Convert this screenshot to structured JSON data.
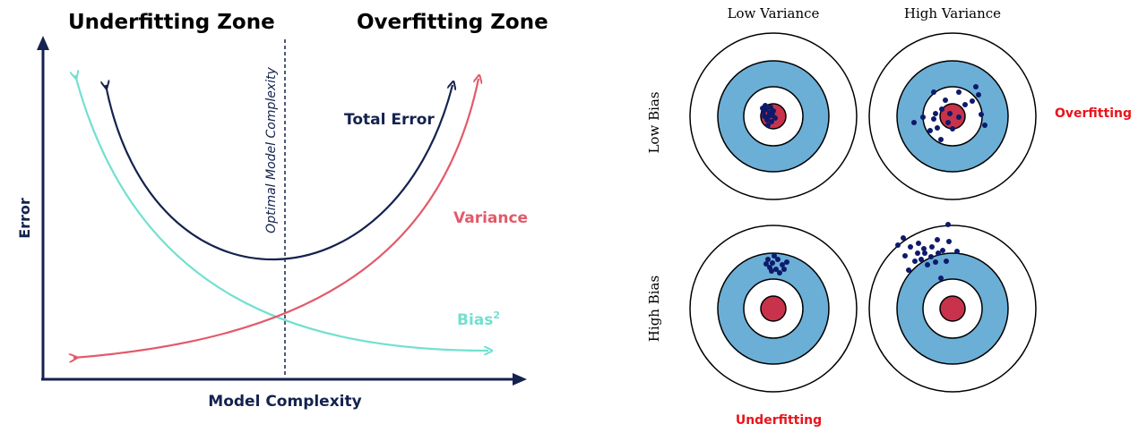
{
  "tradeoff": {
    "zone_left": "Underfitting Zone",
    "zone_right": "Overfitting Zone",
    "x_axis_label": "Model Complexity",
    "y_axis_label": "Error",
    "optimal_label": "Optimal Model Complexity",
    "curves": {
      "total_error": "Total Error",
      "variance": "Variance",
      "bias": "Bias",
      "bias_exponent": "2"
    },
    "colors": {
      "total_error": "#14224f",
      "variance": "#e25a6a",
      "bias": "#72e0d0",
      "axis": "#14224f"
    }
  },
  "targets": {
    "col_headers": [
      "Low Variance",
      "High Variance"
    ],
    "row_headers": [
      "Low Bias",
      "High Bias"
    ],
    "side_label": "Overfitting",
    "bottom_label": "Underfitting",
    "colors": {
      "ring": "#6baed6",
      "bullseye": "#c8324a",
      "dot": "#0d1a6b",
      "label_red": "#e8141c"
    }
  }
}
